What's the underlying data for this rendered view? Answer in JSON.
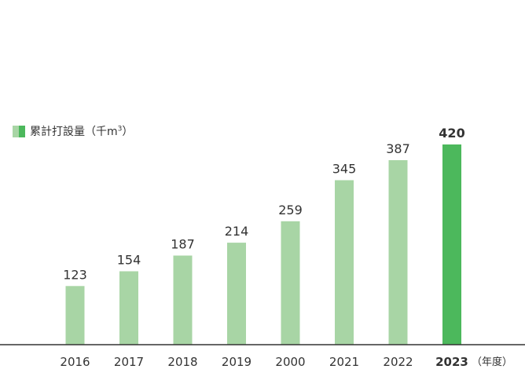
{
  "legend": {
    "label": "累計打設量",
    "unit_prefix": "（千m",
    "unit_sup": "3",
    "unit_suffix": "）"
  },
  "x_unit": "（年度）",
  "colors": {
    "bar": "#a8d5a5",
    "highlight": "#4cb85c",
    "axis": "#333333",
    "text": "#333333"
  },
  "chart_data": {
    "type": "bar",
    "categories": [
      "2016",
      "2017",
      "2018",
      "2019",
      "2000",
      "2021",
      "2022",
      "2023"
    ],
    "values": [
      123,
      154,
      187,
      214,
      259,
      345,
      387,
      420
    ],
    "highlight_index": 7,
    "title": "",
    "xlabel": "（年度）",
    "ylabel": "",
    "ylim": [
      0,
      420
    ],
    "grid": false,
    "legend": "top-left"
  }
}
